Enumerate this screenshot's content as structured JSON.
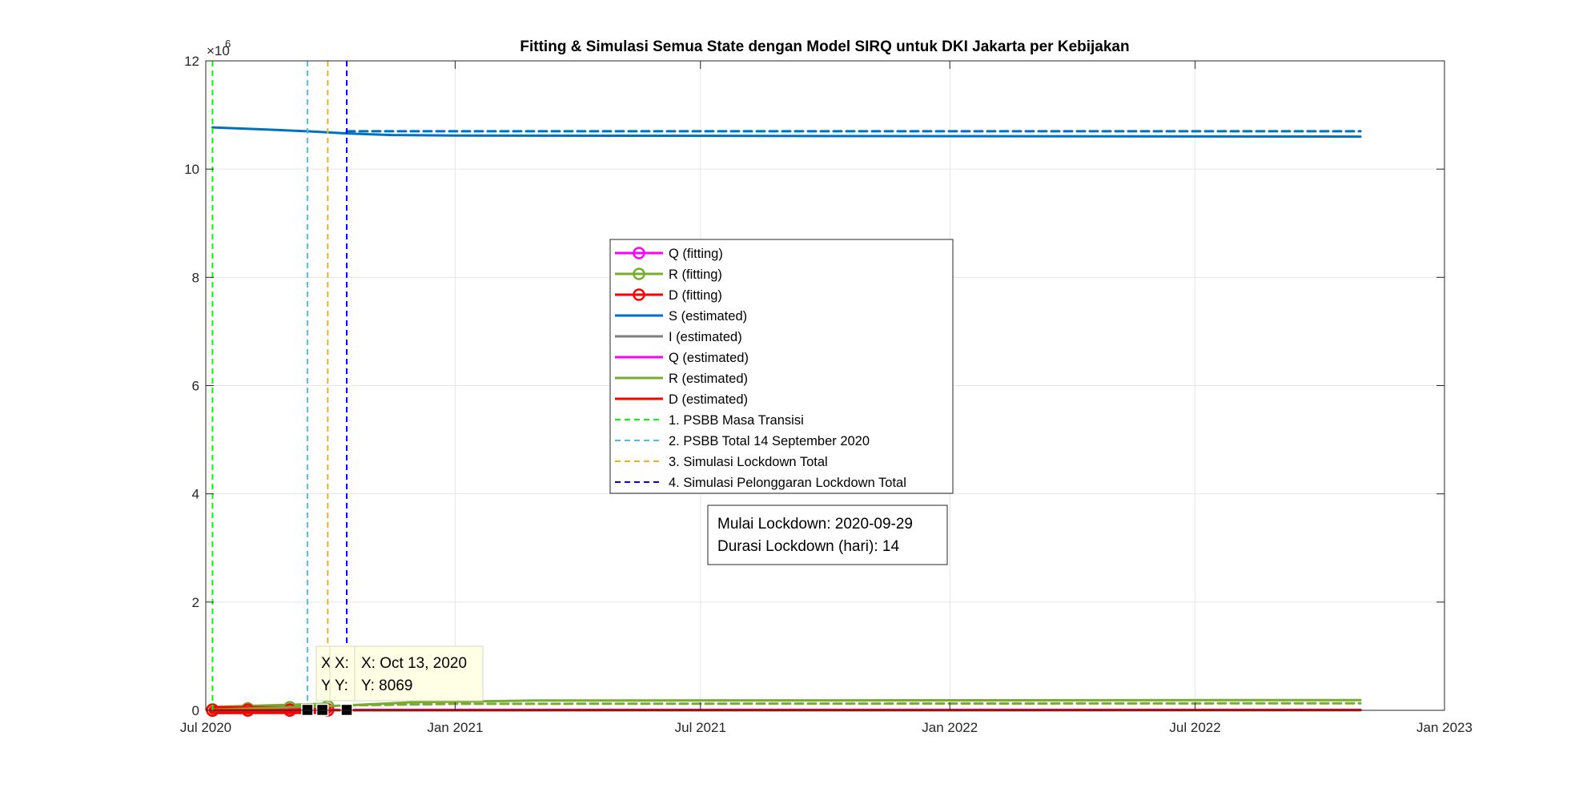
{
  "chart_data": {
    "type": "line",
    "title": "Fitting & Simulasi Semua State dengan Model SIRQ untuk DKI Jakarta per Kebijakan",
    "xlabel": "",
    "ylabel": "",
    "y_exponent_label": "×10",
    "y_exponent_power": "6",
    "xlim": [
      "2020-07-01",
      "2023-01-01"
    ],
    "ylim": [
      0,
      12
    ],
    "x_ticks": [
      {
        "date": "2020-07-01",
        "label": "Jul 2020"
      },
      {
        "date": "2021-01-01",
        "label": "Jan 2021"
      },
      {
        "date": "2021-07-01",
        "label": "Jul 2021"
      },
      {
        "date": "2022-01-01",
        "label": "Jan 2022"
      },
      {
        "date": "2022-07-01",
        "label": "Jul 2022"
      },
      {
        "date": "2023-01-01",
        "label": "Jan 2023"
      }
    ],
    "y_ticks": [
      {
        "value": 0,
        "label": "0"
      },
      {
        "value": 2,
        "label": "2"
      },
      {
        "value": 4,
        "label": "4"
      },
      {
        "value": 6,
        "label": "6"
      },
      {
        "value": 8,
        "label": "8"
      },
      {
        "value": 10,
        "label": "10"
      },
      {
        "value": 12,
        "label": "12"
      }
    ],
    "grid": true,
    "series": [
      {
        "name": "Q (fitting)",
        "color": "#FF00FF",
        "style": "solid-marker",
        "points": [
          [
            "2020-07-06",
            0.005
          ],
          [
            "2020-08-01",
            0.008
          ],
          [
            "2020-09-01",
            0.009
          ],
          [
            "2020-09-29",
            0.008
          ]
        ]
      },
      {
        "name": "R (fitting)",
        "color": "#77AC30",
        "style": "solid-marker",
        "points": [
          [
            "2020-07-06",
            0.01
          ],
          [
            "2020-08-01",
            0.03
          ],
          [
            "2020-09-01",
            0.05
          ],
          [
            "2020-09-29",
            0.07
          ]
        ]
      },
      {
        "name": "D (fitting)",
        "color": "#FF0000",
        "style": "solid-marker",
        "points": [
          [
            "2020-07-06",
            0.002
          ],
          [
            "2020-08-01",
            0.003
          ],
          [
            "2020-09-01",
            0.004
          ],
          [
            "2020-09-29",
            0.005
          ]
        ]
      },
      {
        "name": "S (estimated)",
        "color": "#0072BD",
        "style": "solid",
        "points": [
          [
            "2020-07-06",
            10.77
          ],
          [
            "2020-08-15",
            10.73
          ],
          [
            "2020-09-14",
            10.7
          ],
          [
            "2020-10-13",
            10.66
          ],
          [
            "2020-11-15",
            10.63
          ],
          [
            "2021-01-01",
            10.62
          ],
          [
            "2022-10-31",
            10.6
          ]
        ]
      },
      {
        "name": "S (estimated)",
        "color": "#0072BD",
        "style": "dashed",
        "legend": false,
        "points": [
          [
            "2020-10-13",
            10.7
          ],
          [
            "2022-10-31",
            10.7
          ]
        ]
      },
      {
        "name": "I (estimated)",
        "color": "#7F7F7F",
        "style": "solid",
        "points": [
          [
            "2020-07-06",
            0.002
          ],
          [
            "2022-10-31",
            0.002
          ]
        ]
      },
      {
        "name": "Q (estimated)",
        "color": "#FF00FF",
        "style": "solid",
        "points": [
          [
            "2020-07-06",
            0.005
          ],
          [
            "2020-10-13",
            0.008
          ],
          [
            "2022-10-31",
            0.008
          ]
        ]
      },
      {
        "name": "R (estimated)",
        "color": "#77AC30",
        "style": "solid",
        "points": [
          [
            "2020-07-06",
            0.01
          ],
          [
            "2020-10-13",
            0.09
          ],
          [
            "2020-12-01",
            0.15
          ],
          [
            "2021-03-01",
            0.18
          ],
          [
            "2022-10-31",
            0.19
          ]
        ]
      },
      {
        "name": "R (estimated)",
        "color": "#77AC30",
        "style": "dashed",
        "legend": false,
        "points": [
          [
            "2020-10-13",
            0.09
          ],
          [
            "2021-01-01",
            0.12
          ],
          [
            "2022-10-31",
            0.13
          ]
        ]
      },
      {
        "name": "D (estimated)",
        "color": "#FF0000",
        "style": "solid",
        "points": [
          [
            "2020-07-06",
            0.002
          ],
          [
            "2022-10-31",
            0.006
          ]
        ]
      }
    ],
    "policy_lines": [
      {
        "name": "1. PSBB Masa Transisi",
        "date": "2020-07-06",
        "color": "#00FF00"
      },
      {
        "name": "2. PSBB Total 14 September 2020",
        "date": "2020-09-14",
        "color": "#4DBEEE"
      },
      {
        "name": "3. Simulasi Lockdown Total",
        "date": "2020-09-29",
        "color": "#EDB120"
      },
      {
        "name": "4. Simulasi Pelonggaran Lockdown Total",
        "date": "2020-10-13",
        "color": "#0000FF"
      }
    ],
    "datatip_markers": [
      {
        "date": "2020-09-14",
        "value": 0.008
      },
      {
        "date": "2020-09-25",
        "value": 0.008
      },
      {
        "date": "2020-10-13",
        "value": 0.008
      }
    ],
    "legend_position": "center"
  },
  "legend": {
    "items": [
      {
        "label": "Q (fitting)",
        "color": "#FF00FF",
        "style": "marker"
      },
      {
        "label": "R (fitting)",
        "color": "#77AC30",
        "style": "marker"
      },
      {
        "label": "D (fitting)",
        "color": "#FF0000",
        "style": "marker"
      },
      {
        "label": "S (estimated)",
        "color": "#0072BD",
        "style": "solid"
      },
      {
        "label": "I (estimated)",
        "color": "#7F7F7F",
        "style": "solid"
      },
      {
        "label": "Q (estimated)",
        "color": "#FF00FF",
        "style": "solid"
      },
      {
        "label": "R (estimated)",
        "color": "#77AC30",
        "style": "solid"
      },
      {
        "label": "D (estimated)",
        "color": "#FF0000",
        "style": "solid"
      },
      {
        "label": "1. PSBB Masa Transisi",
        "color": "#00FF00",
        "style": "dashed"
      },
      {
        "label": "2. PSBB Total 14 September 2020",
        "color": "#4DBEEE",
        "style": "dashed"
      },
      {
        "label": "3. Simulasi Lockdown Total",
        "color": "#EDB120",
        "style": "dashed"
      },
      {
        "label": "4. Simulasi Pelonggaran Lockdown Total",
        "color": "#0000FF",
        "style": "dashed"
      }
    ]
  },
  "info_box": {
    "line1": "Mulai Lockdown: 2020-09-29",
    "line2": "Durasi Lockdown (hari): 14"
  },
  "datatips": {
    "hidden_1_x": "X",
    "hidden_1_y": "Y",
    "hidden_2_x": "X:",
    "hidden_2_y": "Y:",
    "front_x": "X: Oct 13, 2020",
    "front_y": "Y: 8069"
  }
}
